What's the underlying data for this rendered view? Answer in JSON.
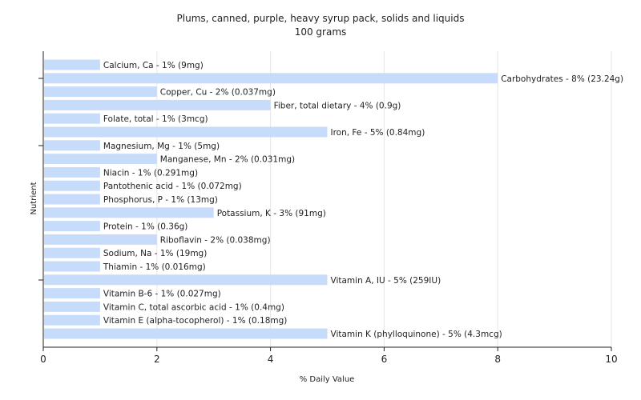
{
  "chart_data": {
    "type": "bar",
    "orientation": "horizontal",
    "title": "Plums, canned, purple, heavy syrup pack, solids and liquids",
    "subtitle": "100 grams",
    "xlabel": "% Daily Value",
    "ylabel": "Nutrient",
    "xlim": [
      0,
      10
    ],
    "xticks": [
      "0",
      "2",
      "4",
      "6",
      "8",
      "10"
    ],
    "grid": true,
    "bar_color": "#c6dcfa",
    "categories": [
      "Calcium, Ca",
      "Carbohydrates",
      "Copper, Cu",
      "Fiber, total dietary",
      "Folate, total",
      "Iron, Fe",
      "Magnesium, Mg",
      "Manganese, Mn",
      "Niacin",
      "Pantothenic acid",
      "Phosphorus, P",
      "Potassium, K",
      "Protein",
      "Riboflavin",
      "Sodium, Na",
      "Thiamin",
      "Vitamin A, IU",
      "Vitamin B-6",
      "Vitamin C, total ascorbic acid",
      "Vitamin E (alpha-tocopherol)",
      "Vitamin K (phylloquinone)"
    ],
    "values": [
      1,
      8,
      2,
      4,
      1,
      5,
      1,
      2,
      1,
      1,
      1,
      3,
      1,
      2,
      1,
      1,
      5,
      1,
      1,
      1,
      5
    ],
    "labels": [
      "Calcium, Ca - 1% (9mg)",
      "Carbohydrates - 8% (23.24g)",
      "Copper, Cu - 2% (0.037mg)",
      "Fiber, total dietary - 4% (0.9g)",
      "Folate, total - 1% (3mcg)",
      "Iron, Fe - 5% (0.84mg)",
      "Magnesium, Mg - 1% (5mg)",
      "Manganese, Mn - 2% (0.031mg)",
      "Niacin - 1% (0.291mg)",
      "Pantothenic acid - 1% (0.072mg)",
      "Phosphorus, P - 1% (13mg)",
      "Potassium, K - 3% (91mg)",
      "Protein - 1% (0.36g)",
      "Riboflavin - 2% (0.038mg)",
      "Sodium, Na - 1% (19mg)",
      "Thiamin - 1% (0.016mg)",
      "Vitamin A, IU - 5% (259IU)",
      "Vitamin B-6 - 1% (0.027mg)",
      "Vitamin C, total ascorbic acid - 1% (0.4mg)",
      "Vitamin E (alpha-tocopherol) - 1% (0.18mg)",
      "Vitamin K (phylloquinone) - 5% (4.3mcg)"
    ]
  }
}
